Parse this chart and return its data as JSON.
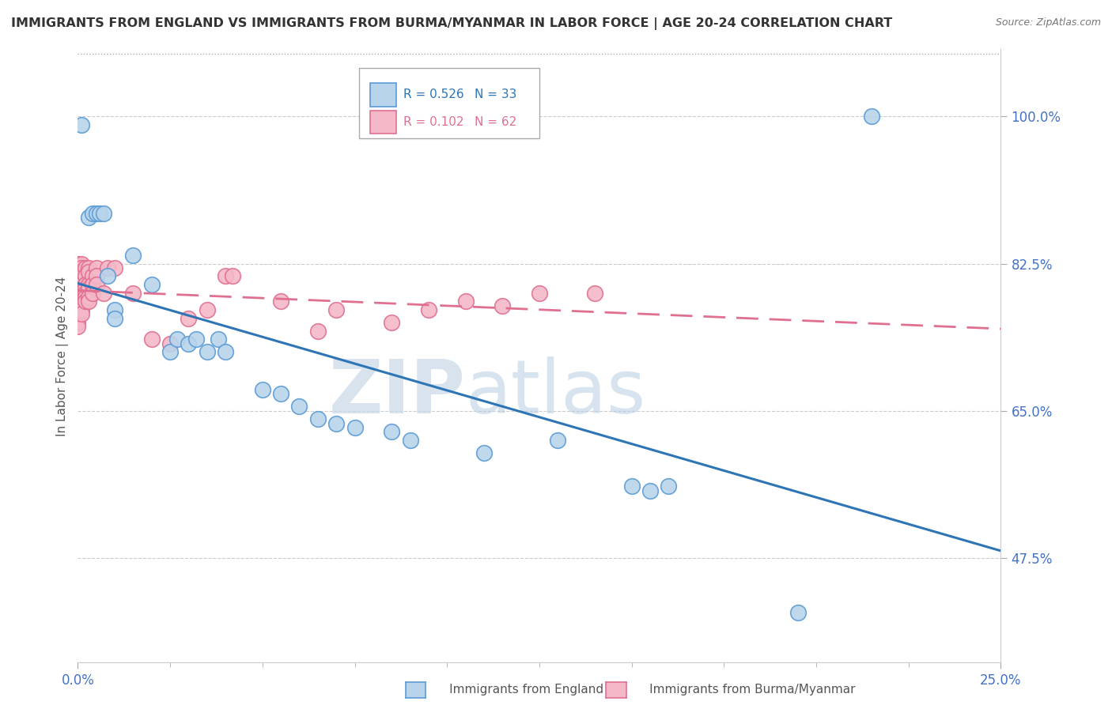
{
  "title": "IMMIGRANTS FROM ENGLAND VS IMMIGRANTS FROM BURMA/MYANMAR IN LABOR FORCE | AGE 20-24 CORRELATION CHART",
  "source": "Source: ZipAtlas.com",
  "ylabel": "In Labor Force | Age 20-24",
  "yticks": [
    0.475,
    0.65,
    0.825,
    1.0
  ],
  "ytick_labels": [
    "47.5%",
    "65.0%",
    "82.5%",
    "100.0%"
  ],
  "xtick_labels": [
    "0.0%",
    "25.0%"
  ],
  "legend_england_r": "R = 0.526",
  "legend_england_n": "N = 33",
  "legend_burma_r": "R = 0.102",
  "legend_burma_n": "N = 62",
  "england_color": "#b8d4ea",
  "england_edge": "#5b9bd5",
  "burma_color": "#f4b8c8",
  "burma_edge": "#e07090",
  "england_line_color": "#2e75b6",
  "burma_line_color": "#e07090",
  "watermark_zip": "ZIP",
  "watermark_atlas": "atlas",
  "xlim": [
    0.0,
    0.25
  ],
  "ylim": [
    0.35,
    1.08
  ],
  "england_scatter": [
    [
      0.001,
      0.99
    ],
    [
      0.003,
      0.88
    ],
    [
      0.004,
      0.885
    ],
    [
      0.005,
      0.885
    ],
    [
      0.006,
      0.885
    ],
    [
      0.007,
      0.885
    ],
    [
      0.008,
      0.81
    ],
    [
      0.01,
      0.77
    ],
    [
      0.01,
      0.76
    ],
    [
      0.015,
      0.835
    ],
    [
      0.02,
      0.8
    ],
    [
      0.025,
      0.72
    ],
    [
      0.027,
      0.735
    ],
    [
      0.03,
      0.73
    ],
    [
      0.032,
      0.735
    ],
    [
      0.035,
      0.72
    ],
    [
      0.038,
      0.735
    ],
    [
      0.04,
      0.72
    ],
    [
      0.05,
      0.675
    ],
    [
      0.055,
      0.67
    ],
    [
      0.06,
      0.655
    ],
    [
      0.065,
      0.64
    ],
    [
      0.07,
      0.635
    ],
    [
      0.075,
      0.63
    ],
    [
      0.085,
      0.625
    ],
    [
      0.09,
      0.615
    ],
    [
      0.11,
      0.6
    ],
    [
      0.13,
      0.615
    ],
    [
      0.15,
      0.56
    ],
    [
      0.155,
      0.555
    ],
    [
      0.16,
      0.56
    ],
    [
      0.195,
      0.41
    ],
    [
      0.215,
      1.0
    ]
  ],
  "burma_scatter": [
    [
      0.0,
      0.825
    ],
    [
      0.0,
      0.815
    ],
    [
      0.0,
      0.81
    ],
    [
      0.0,
      0.8
    ],
    [
      0.0,
      0.795
    ],
    [
      0.0,
      0.79
    ],
    [
      0.0,
      0.785
    ],
    [
      0.0,
      0.78
    ],
    [
      0.0,
      0.775
    ],
    [
      0.0,
      0.77
    ],
    [
      0.0,
      0.765
    ],
    [
      0.0,
      0.755
    ],
    [
      0.0,
      0.75
    ],
    [
      0.001,
      0.825
    ],
    [
      0.001,
      0.82
    ],
    [
      0.001,
      0.815
    ],
    [
      0.001,
      0.81
    ],
    [
      0.001,
      0.8
    ],
    [
      0.001,
      0.795
    ],
    [
      0.001,
      0.79
    ],
    [
      0.001,
      0.785
    ],
    [
      0.001,
      0.775
    ],
    [
      0.001,
      0.77
    ],
    [
      0.001,
      0.765
    ],
    [
      0.002,
      0.82
    ],
    [
      0.002,
      0.81
    ],
    [
      0.002,
      0.8
    ],
    [
      0.002,
      0.795
    ],
    [
      0.002,
      0.79
    ],
    [
      0.002,
      0.785
    ],
    [
      0.002,
      0.78
    ],
    [
      0.003,
      0.82
    ],
    [
      0.003,
      0.815
    ],
    [
      0.003,
      0.8
    ],
    [
      0.003,
      0.795
    ],
    [
      0.003,
      0.785
    ],
    [
      0.003,
      0.78
    ],
    [
      0.004,
      0.81
    ],
    [
      0.004,
      0.8
    ],
    [
      0.004,
      0.79
    ],
    [
      0.005,
      0.82
    ],
    [
      0.005,
      0.81
    ],
    [
      0.005,
      0.8
    ],
    [
      0.007,
      0.79
    ],
    [
      0.008,
      0.82
    ],
    [
      0.01,
      0.82
    ],
    [
      0.015,
      0.79
    ],
    [
      0.02,
      0.735
    ],
    [
      0.025,
      0.73
    ],
    [
      0.03,
      0.76
    ],
    [
      0.035,
      0.77
    ],
    [
      0.04,
      0.81
    ],
    [
      0.042,
      0.81
    ],
    [
      0.055,
      0.78
    ],
    [
      0.065,
      0.745
    ],
    [
      0.07,
      0.77
    ],
    [
      0.085,
      0.755
    ],
    [
      0.095,
      0.77
    ],
    [
      0.105,
      0.78
    ],
    [
      0.115,
      0.775
    ],
    [
      0.125,
      0.79
    ],
    [
      0.14,
      0.79
    ]
  ]
}
